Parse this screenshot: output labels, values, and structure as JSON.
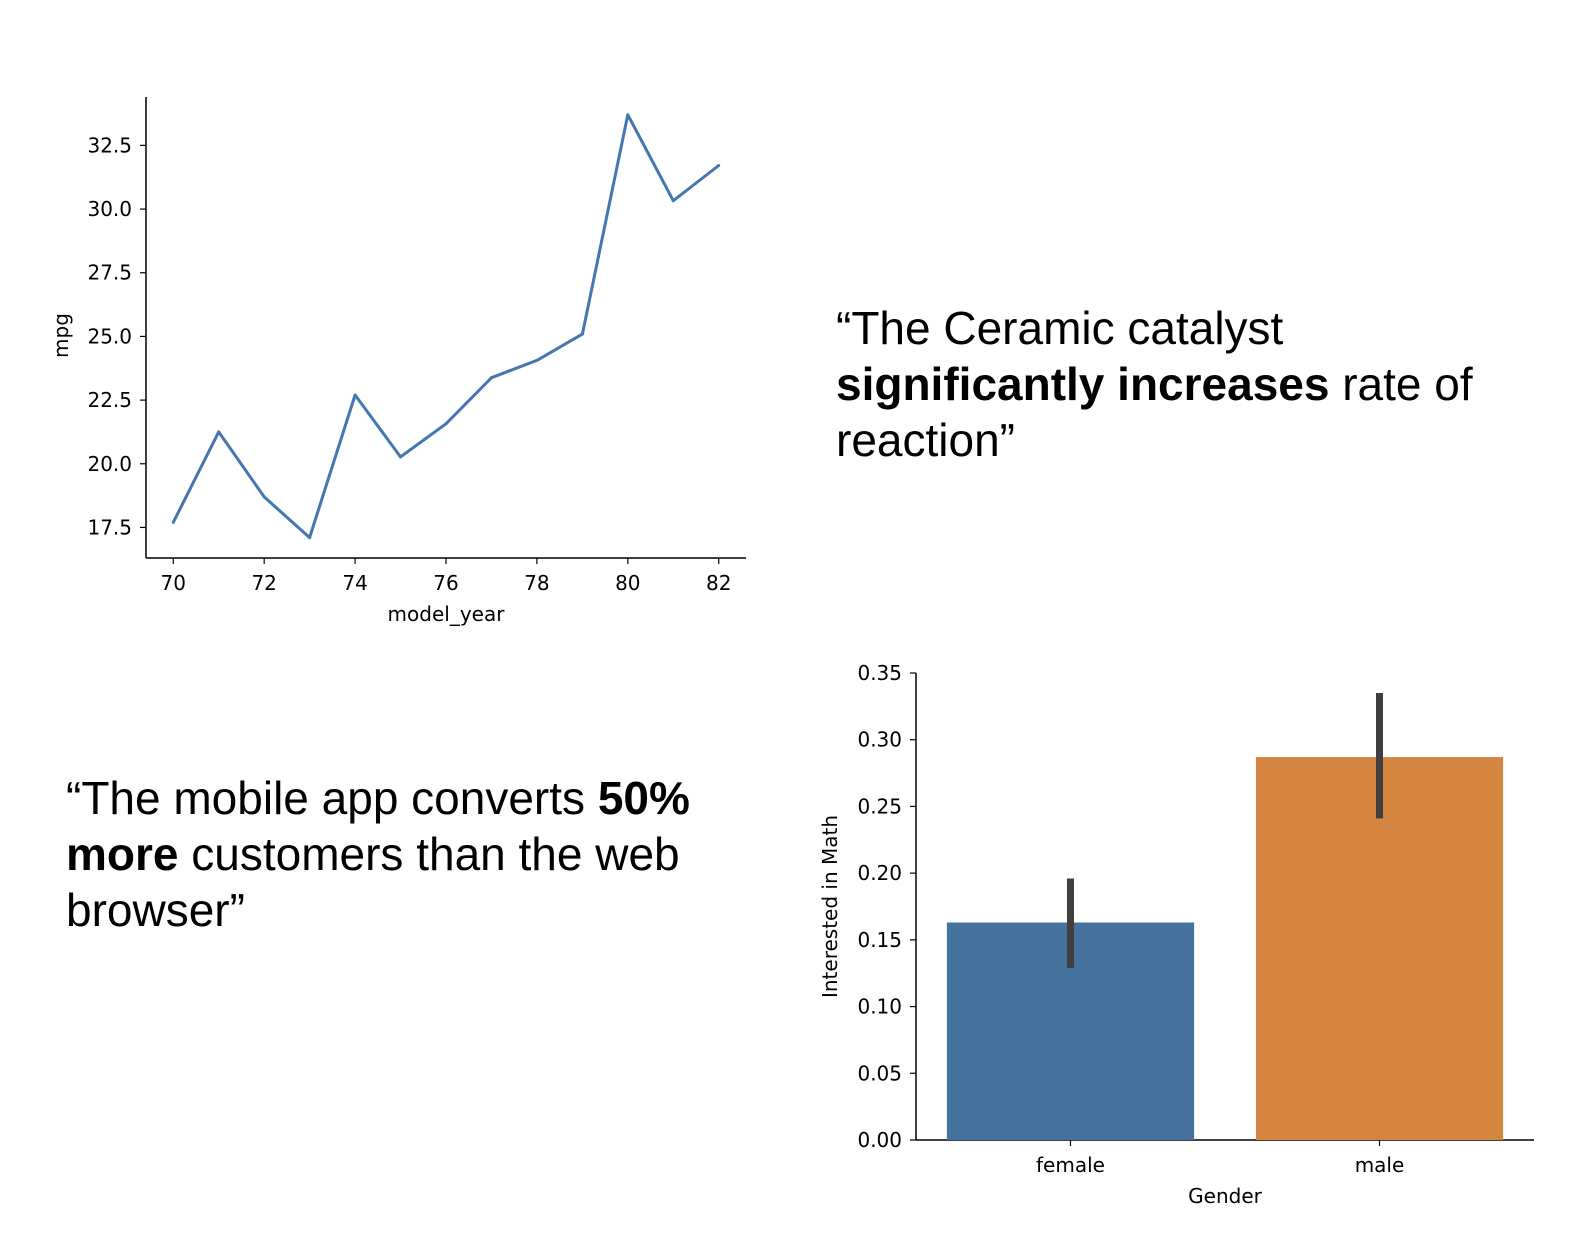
{
  "quotes": {
    "q1": {
      "pre": "“The Ceramic catalyst ",
      "bold": "significantly increases",
      "post": " rate of reaction”"
    },
    "q2": {
      "pre": "“The mobile app converts ",
      "bold": "50% more",
      "post": " customers than the web browser”"
    }
  },
  "chart_data": [
    {
      "type": "line",
      "title": "",
      "xlabel": "model_year",
      "ylabel": "mpg",
      "x": [
        70,
        71,
        72,
        73,
        74,
        75,
        76,
        77,
        78,
        79,
        80,
        81,
        82
      ],
      "series": [
        {
          "values": [
            17.7,
            21.25,
            18.7,
            17.1,
            22.7,
            20.27,
            21.57,
            23.38,
            24.06,
            25.09,
            33.7,
            30.33,
            31.71
          ]
        }
      ],
      "xlim": [
        69.4,
        82.6
      ],
      "ylim": [
        16.3,
        34.4
      ],
      "xticks": [
        "70",
        "72",
        "74",
        "76",
        "78",
        "80",
        "82"
      ],
      "yticks": [
        "17.5",
        "20.0",
        "22.5",
        "25.0",
        "27.5",
        "30.0",
        "32.5"
      ],
      "colors": [
        "#4477b0"
      ],
      "grid": false
    },
    {
      "type": "bar",
      "title": "",
      "xlabel": "Gender",
      "ylabel": "Interested in Math",
      "categories": [
        "female",
        "male"
      ],
      "values": [
        0.163,
        0.287
      ],
      "error_bars": [
        [
          0.129,
          0.196
        ],
        [
          0.241,
          0.335
        ]
      ],
      "ylim": [
        0,
        0.35
      ],
      "yticks": [
        "0.00",
        "0.05",
        "0.10",
        "0.15",
        "0.20",
        "0.25",
        "0.30",
        "0.35"
      ],
      "colors": [
        "#44729d",
        "#d48640"
      ],
      "error_color": "#3f3f3f",
      "grid": false
    }
  ]
}
